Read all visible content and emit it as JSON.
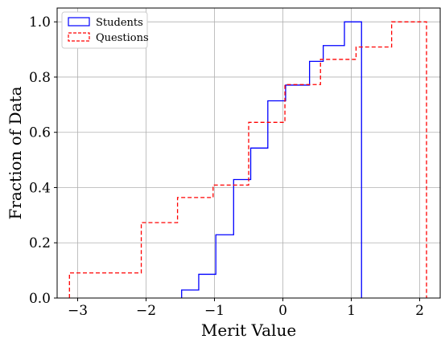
{
  "chart_data": {
    "type": "line",
    "subtype": "cumulative-step-histogram",
    "title": "",
    "xlabel": "Merit Value",
    "ylabel": "Fraction of Data",
    "xlim": [
      -3.3,
      2.3
    ],
    "ylim": [
      0.0,
      1.05
    ],
    "xticks": [
      -3,
      -2,
      -1,
      0,
      1,
      2
    ],
    "xtick_labels": [
      "−3",
      "−2",
      "−1",
      "0",
      "1",
      "2"
    ],
    "yticks": [
      0.0,
      0.2,
      0.4,
      0.6,
      0.8,
      1.0
    ],
    "ytick_labels": [
      "0.0",
      "0.2",
      "0.4",
      "0.6",
      "0.8",
      "1.0"
    ],
    "grid": true,
    "legend_position": "top-left",
    "series": [
      {
        "name": "Students",
        "color": "#0000ff",
        "linestyle": "solid",
        "bin_edges": [
          -1.48,
          -1.23,
          -0.98,
          -0.72,
          -0.47,
          -0.22,
          0.04,
          0.39,
          0.59,
          0.9,
          1.15
        ],
        "values": [
          0.029,
          0.086,
          0.229,
          0.429,
          0.543,
          0.714,
          0.771,
          0.857,
          0.914,
          1.0
        ]
      },
      {
        "name": "Questions",
        "color": "#ff0000",
        "linestyle": "dashed",
        "bin_edges": [
          -3.12,
          -2.07,
          -1.54,
          -1.02,
          -0.5,
          0.03,
          0.55,
          1.07,
          1.59,
          2.1
        ],
        "values": [
          0.091,
          0.273,
          0.364,
          0.409,
          0.636,
          0.773,
          0.864,
          0.909,
          1.0
        ]
      }
    ]
  }
}
